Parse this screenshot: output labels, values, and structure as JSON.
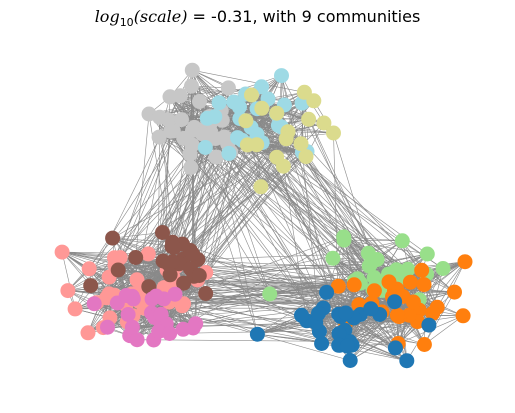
{
  "title": {
    "log_text": "log",
    "log_base": "10",
    "scale_arg": "(scale)",
    "rest": " =  -0.31, with 9 communities"
  },
  "graph": {
    "edge_color": "#8a8a8a",
    "communities": [
      {
        "name": "gray",
        "color": "#c7c7c7",
        "nodes": 32
      },
      {
        "name": "light-blue",
        "color": "#9edae5",
        "nodes": 28
      },
      {
        "name": "olive",
        "color": "#dbdb8d",
        "nodes": 18
      },
      {
        "name": "pink",
        "color": "#ff9896",
        "nodes": 36
      },
      {
        "name": "brown",
        "color": "#8c564b",
        "nodes": 24
      },
      {
        "name": "orchid",
        "color": "#e377c2",
        "nodes": 26
      },
      {
        "name": "light-green",
        "color": "#98df8a",
        "nodes": 26
      },
      {
        "name": "orange",
        "color": "#ff7f0e",
        "nodes": 30
      },
      {
        "name": "blue",
        "color": "#1f77b4",
        "nodes": 28
      }
    ]
  }
}
